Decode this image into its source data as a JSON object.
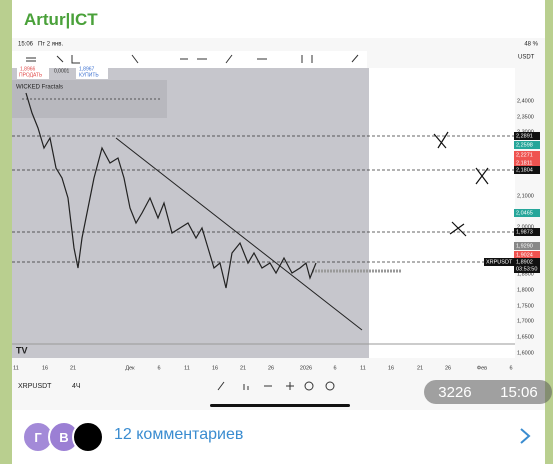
{
  "header": {
    "title": "Artur|ICT"
  },
  "screenshot": {
    "status": {
      "time": "15:06",
      "date": "Пт 2 янв.",
      "battery": "48 %"
    },
    "currency": "USDT",
    "trade": {
      "sell_price": "1,8966",
      "sell": "ПРОДАТЬ",
      "spread": "0,0001",
      "buy_price": "1,8967",
      "buy": "КУПИТЬ"
    },
    "indicator": "WICKED Fractals",
    "price_axis": [
      "2,4000",
      "2,3500",
      "2,3000",
      "2,1000",
      "2,0000",
      "1,8500",
      "1,8000",
      "1,7500",
      "1,7000",
      "1,6500",
      "1,6000"
    ],
    "price_labels": [
      "2,2891",
      "2,2598",
      "2,2271",
      "2,1811",
      "2,1804",
      "2,0465",
      "1,9873",
      "1,9290",
      "1,9024",
      "1,8902",
      "03:53:50"
    ],
    "symbol_label": "XRPUSDT",
    "time_axis": [
      "11",
      "16",
      "21",
      "Дек",
      "6",
      "11",
      "16",
      "21",
      "26",
      "2026",
      "6",
      "11",
      "16",
      "21",
      "26",
      "Фев",
      "6"
    ],
    "symbol": "XRPUSDT",
    "interval": "4Ч"
  },
  "overlay": {
    "views": "3226",
    "time": "15:06"
  },
  "footer": {
    "avatars": [
      "Г",
      "В"
    ],
    "comments": "12 комментариев"
  }
}
